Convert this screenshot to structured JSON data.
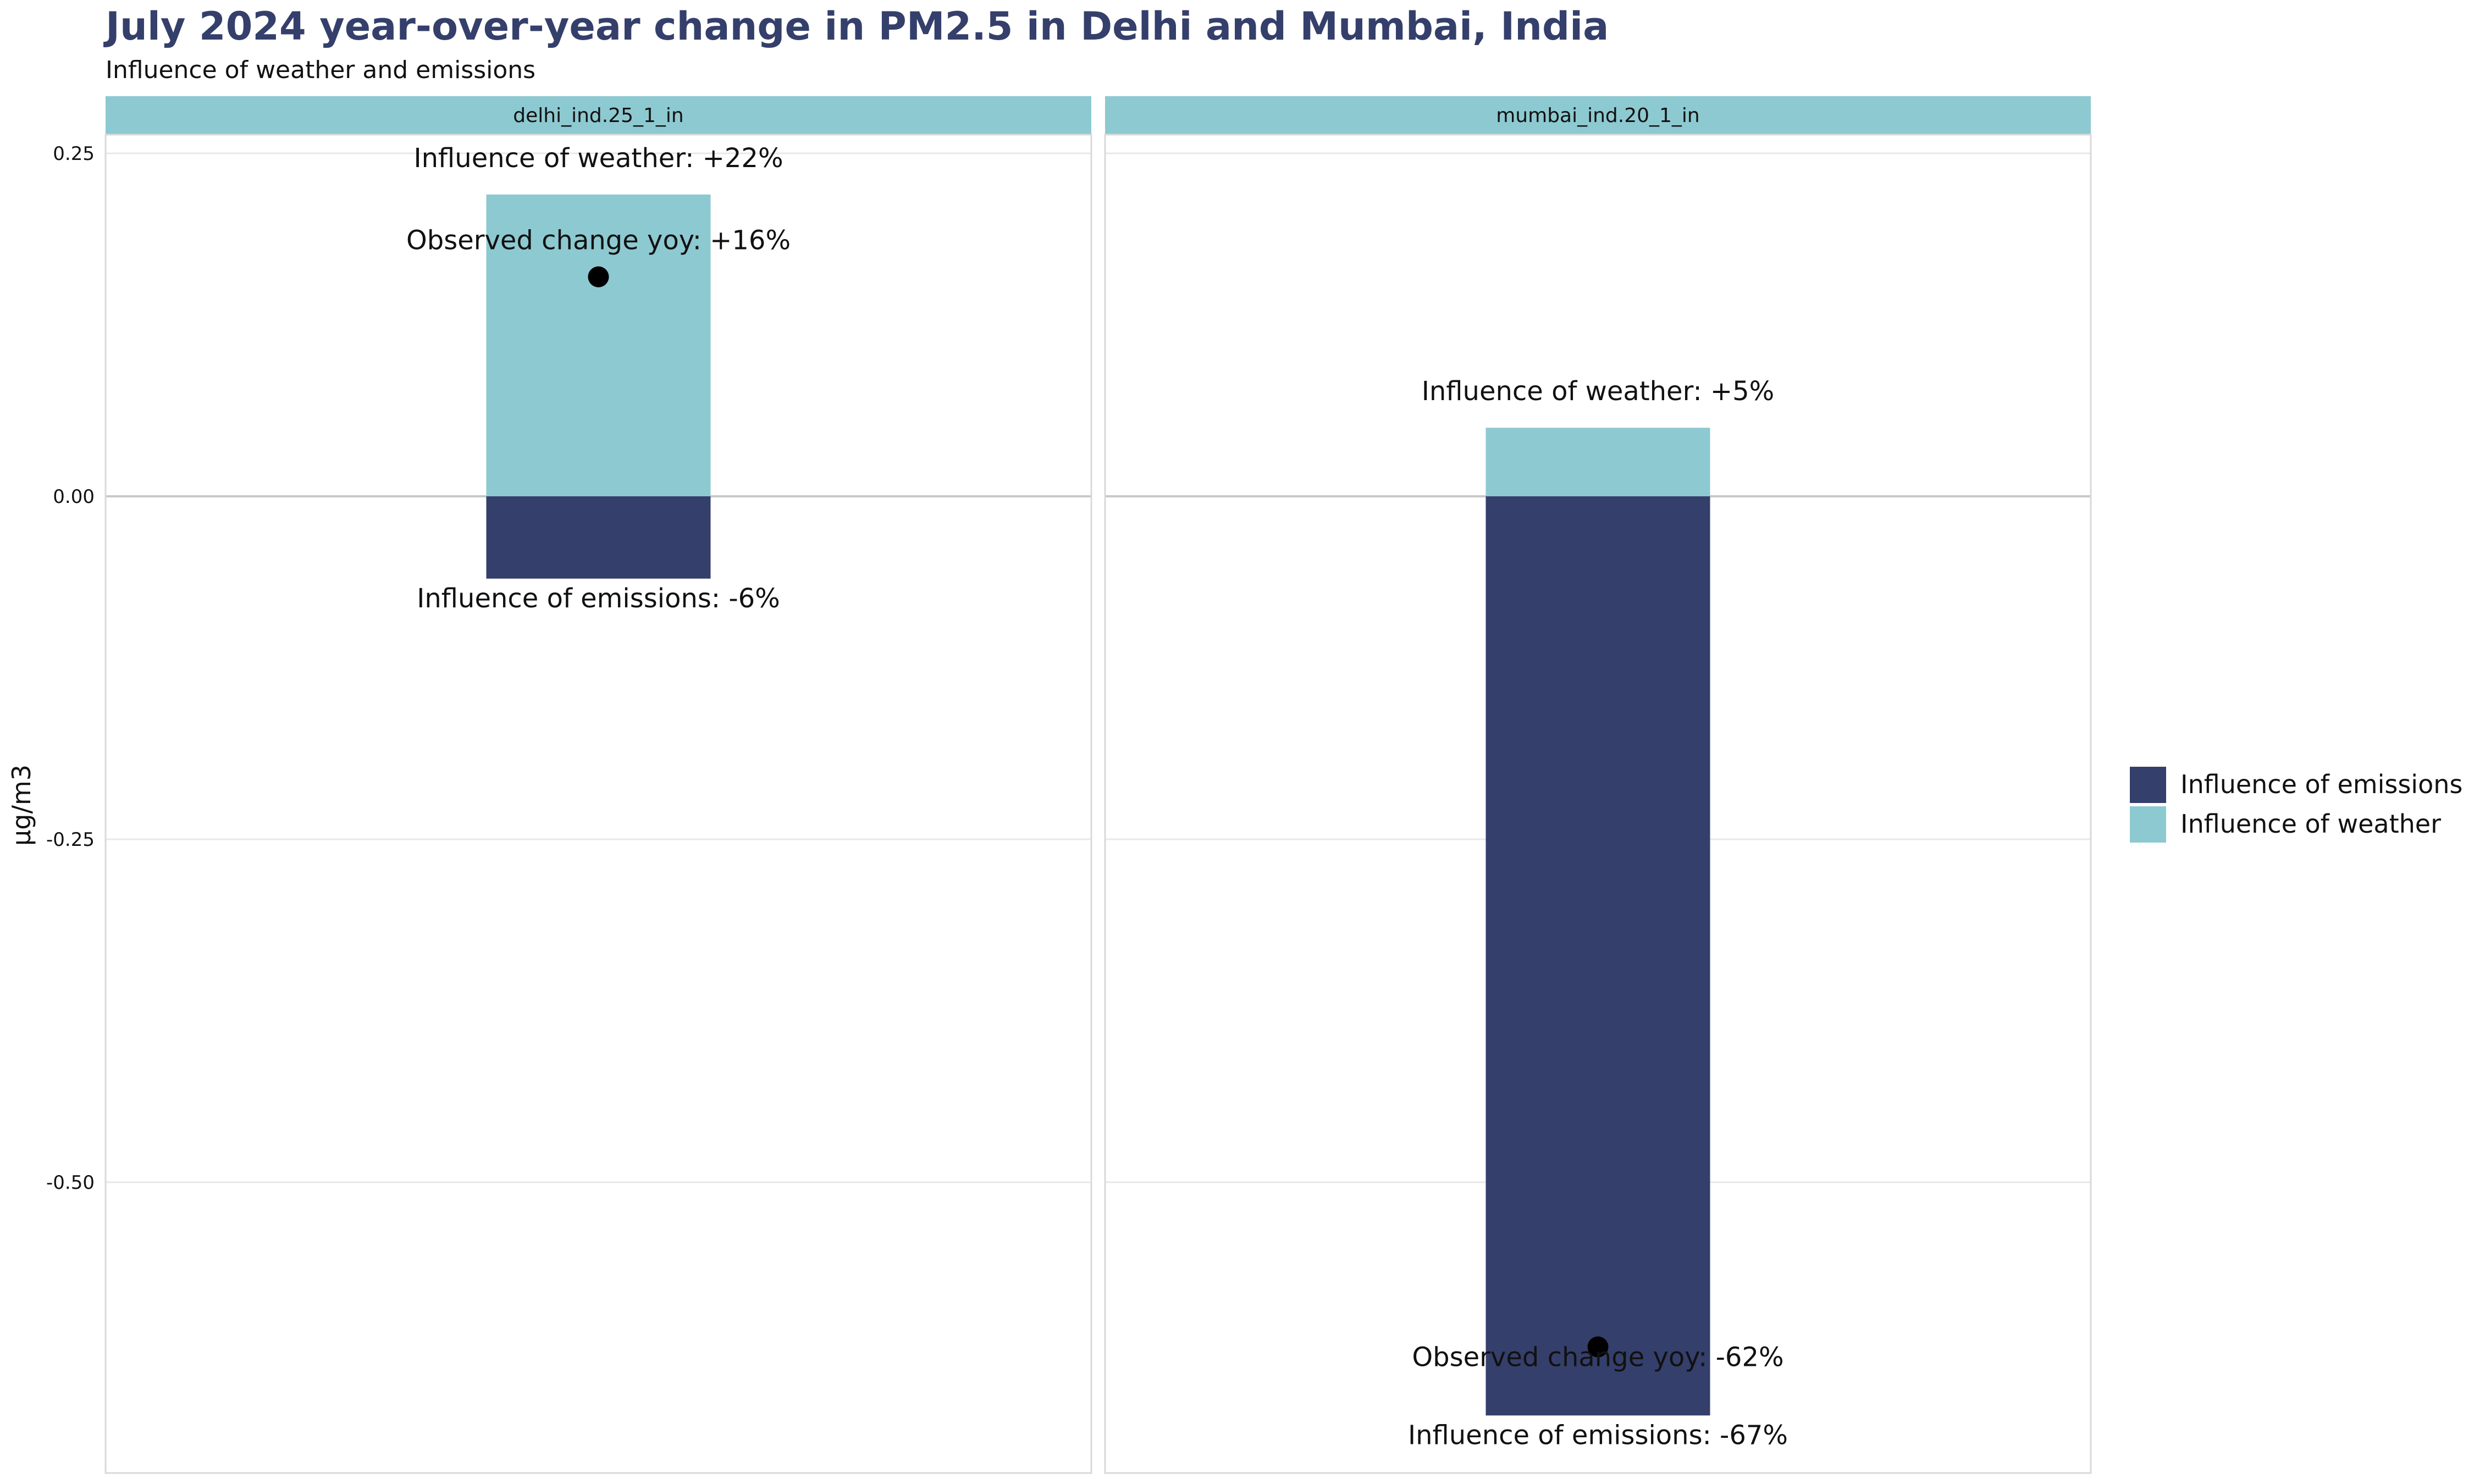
{
  "title": "July 2024 year-over-year change in PM2.5 in Delhi and Mumbai, India",
  "subtitle": "Influence of weather and emissions",
  "colors": {
    "title": "#353f6b",
    "emissions": "#353f6b",
    "weather": "#8dc9d1",
    "strip": "#8dc9d1",
    "observed_point": "#000000"
  },
  "chart_data": {
    "type": "bar",
    "stacked": true,
    "ylabel": "µg/m3",
    "xlabel": "",
    "ylim": [
      -0.72,
      0.27
    ],
    "yticks": [
      0.25,
      0,
      -0.25,
      -0.5
    ],
    "ytick_labels": [
      "0.25",
      "0.00",
      "-0.25",
      "-0.50"
    ],
    "grid": true,
    "legend_position": "right",
    "legend": [
      "Influence of emissions",
      "Influence of weather"
    ],
    "panels": [
      {
        "label": "delhi_ind.25_1_in",
        "emissions": -0.06,
        "weather": 0.22,
        "observed": 0.16,
        "weather_label": "Influence of weather: +22%",
        "emissions_label": "Influence of emissions: -6%",
        "observed_label": "Observed change yoy: +16%"
      },
      {
        "label": "mumbai_ind.20_1_in",
        "emissions": -0.67,
        "weather": 0.05,
        "observed": -0.62,
        "weather_label": "Influence of weather: +5%",
        "emissions_label": "Influence of emissions: -67%",
        "observed_label": "Observed change yoy: -62%"
      }
    ]
  }
}
